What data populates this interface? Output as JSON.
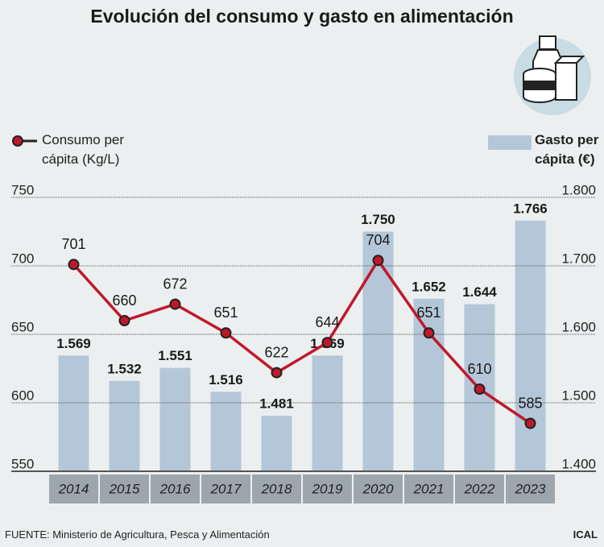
{
  "chart_data": {
    "type": "combo",
    "title": "Evolución del consumo y gasto en alimentación",
    "categories": [
      "2014",
      "2015",
      "2016",
      "2017",
      "2018",
      "2019",
      "2020",
      "2021",
      "2022",
      "2023"
    ],
    "series": [
      {
        "name": "Consumo per cápita (Kg/L)",
        "type": "line",
        "color": "#c0182b",
        "axis": "y",
        "values": [
          701,
          660,
          672,
          651,
          622,
          644,
          704,
          651,
          610,
          585
        ]
      },
      {
        "name": "Gasto per cápita (€)",
        "type": "bar",
        "color": "#b4c7d9",
        "axis": "y2",
        "values": [
          1569,
          1532,
          1551,
          1516,
          1481,
          1569,
          1750,
          1652,
          1644,
          1766
        ],
        "value_labels": [
          "1.569",
          "1.532",
          "1.551",
          "1.516",
          "1.481",
          "1.569",
          "1.750",
          "1.652",
          "1.644",
          "1.766"
        ]
      }
    ],
    "ylim": [
      550,
      750
    ],
    "yticks": [
      550,
      600,
      650,
      700,
      750
    ],
    "y2lim": [
      1400,
      1800
    ],
    "y2ticks": [
      {
        "value": 1400,
        "label": "1.400"
      },
      {
        "value": 1500,
        "label": "1.500"
      },
      {
        "value": 1600,
        "label": "1.600"
      },
      {
        "value": 1700,
        "label": "1.700"
      },
      {
        "value": 1800,
        "label": "1.800"
      }
    ],
    "grid": true,
    "source": "FUENTE: Ministerio de Agricultura, Pesca y  Alimentación",
    "credit": "ICAL"
  }
}
